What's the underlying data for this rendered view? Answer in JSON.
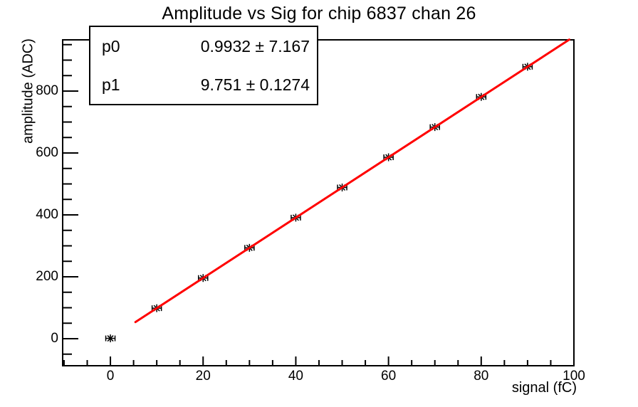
{
  "chart_data": {
    "type": "scatter",
    "title": "Amplitude vs Sig for chip 6837 chan 26",
    "xlabel": "signal (fC)",
    "ylabel": "amplitude (ADC)",
    "xlim": [
      -10.3,
      100
    ],
    "ylim": [
      -87.4,
      965.5
    ],
    "x_major_ticks": [
      0,
      20,
      40,
      60,
      80,
      100
    ],
    "x_minor_tick_step": 5,
    "y_major_ticks": [
      0,
      200,
      400,
      600,
      800
    ],
    "y_minor_tick_step": 50,
    "grid": false,
    "legend": "none",
    "marker_style": "asterisk-with-x-error-bars",
    "marker_color": "#000000",
    "frame_color": "#000000",
    "background_color": "#ffffff",
    "points": [
      {
        "x": 0,
        "y": 1.0,
        "xerr": 1
      },
      {
        "x": 10,
        "y": 98.5,
        "xerr": 1
      },
      {
        "x": 20,
        "y": 196.0,
        "xerr": 1
      },
      {
        "x": 30,
        "y": 293.5,
        "xerr": 1
      },
      {
        "x": 40,
        "y": 391.0,
        "xerr": 1
      },
      {
        "x": 50,
        "y": 488.5,
        "xerr": 1
      },
      {
        "x": 60,
        "y": 586.1,
        "xerr": 1
      },
      {
        "x": 70,
        "y": 683.6,
        "xerr": 1
      },
      {
        "x": 80,
        "y": 781.1,
        "xerr": 1
      },
      {
        "x": 90,
        "y": 878.6,
        "xerr": 1
      }
    ],
    "fit": {
      "type": "linear",
      "p0": 0.9932,
      "p1": 9.751,
      "x_start": 5.4,
      "x_end": 99.0,
      "color": "#ff0000"
    },
    "stats_box": {
      "rows": [
        {
          "label": "p0",
          "value": "0.9932 ± 7.167"
        },
        {
          "label": "p1",
          "value": "9.751 ± 0.1274"
        }
      ]
    }
  }
}
